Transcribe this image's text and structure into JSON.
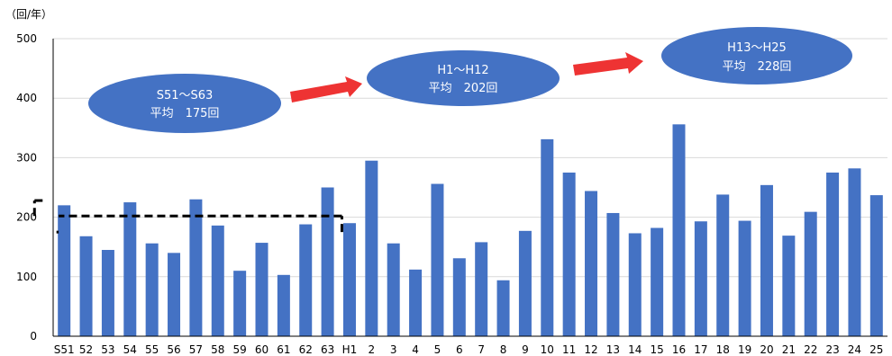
{
  "chart_data": {
    "type": "bar",
    "unit_label": "（回/年）",
    "ylim": [
      0,
      500
    ],
    "yticks": [
      0,
      100,
      200,
      300,
      400,
      500
    ],
    "grid": true,
    "bar_color": "#4472C4",
    "categories": [
      "S51",
      "52",
      "53",
      "54",
      "55",
      "56",
      "57",
      "58",
      "59",
      "60",
      "61",
      "62",
      "63",
      "H1",
      "2",
      "3",
      "4",
      "5",
      "6",
      "7",
      "8",
      "9",
      "10",
      "11",
      "12",
      "13",
      "14",
      "15",
      "16",
      "17",
      "18",
      "19",
      "20",
      "21",
      "22",
      "23",
      "24",
      "25"
    ],
    "values": [
      220,
      168,
      145,
      225,
      156,
      140,
      230,
      186,
      110,
      157,
      103,
      188,
      250,
      190,
      295,
      156,
      112,
      256,
      131,
      158,
      94,
      177,
      331,
      275,
      244,
      207,
      173,
      182,
      356,
      193,
      238,
      194,
      254,
      169,
      209,
      275,
      282,
      237
    ],
    "averages": [
      {
        "from": "S51",
        "to": "S63",
        "value": 175
      },
      {
        "from": "H1",
        "to": "H12",
        "value": 202
      },
      {
        "from": "H13",
        "to": "H25",
        "value": 228
      }
    ],
    "annotations": [
      {
        "line1": "S51～S63",
        "line2": "平均　175回"
      },
      {
        "line1": "H1～H12",
        "line2": "平均　202回"
      },
      {
        "line1": "H13～H25",
        "line2": "平均　228回"
      }
    ],
    "colors": {
      "bubble": "#4472C4",
      "arrow": "#EE3333",
      "avg_line": "#000000",
      "grid": "#D9D9D9"
    }
  }
}
